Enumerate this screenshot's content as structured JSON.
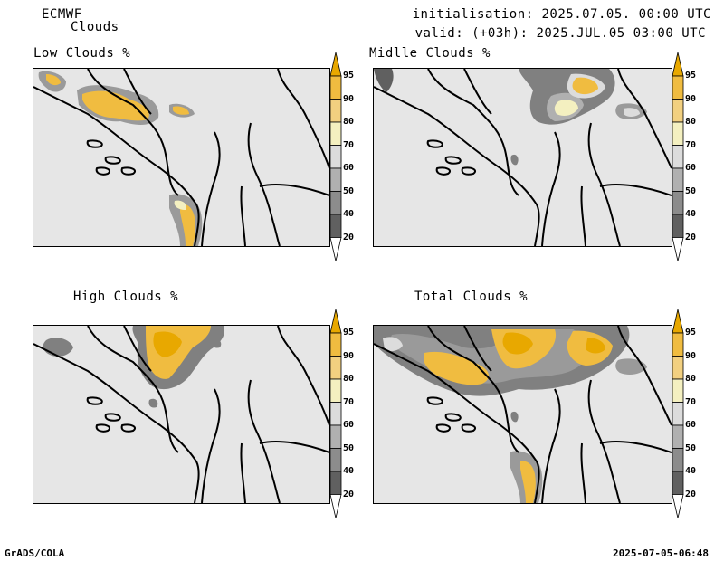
{
  "header": {
    "model": "ECMWF",
    "parameter": "Clouds",
    "initialisation": "initialisation: 2025.07.05. 00:00 UTC",
    "valid": "valid: (+03h): 2025.JUL.05 03:00 UTC"
  },
  "panels": [
    {
      "id": "low",
      "title": "Low Clouds %"
    },
    {
      "id": "middle",
      "title": "Midlle Clouds %"
    },
    {
      "id": "high",
      "title": "High Clouds %"
    },
    {
      "id": "total",
      "title": "Total Clouds %"
    }
  ],
  "colorbar": {
    "ticks": [
      "95",
      "90",
      "80",
      "70",
      "60",
      "50",
      "40",
      "20"
    ],
    "colors": [
      "#e8a800",
      "#f0bc40",
      "#f2d080",
      "#f4f0c0",
      "#dcdcdc",
      "#b0b0b0",
      "#8c8c8c",
      "#606060",
      "#ffffff"
    ]
  },
  "footer": {
    "left": "GrADS/COLA",
    "right": "2025-07-05-06:48"
  }
}
